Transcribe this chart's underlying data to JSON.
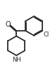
{
  "bg_color": "#ffffff",
  "line_color": "#2a2a2a",
  "line_width": 1.3,
  "font_size_O": 7,
  "font_size_Cl": 6,
  "font_size_NH": 6,
  "O_label": "O",
  "Cl_label": "Cl",
  "NH_label": "NH",
  "xlim": [
    0,
    10
  ],
  "ylim": [
    0,
    15
  ]
}
